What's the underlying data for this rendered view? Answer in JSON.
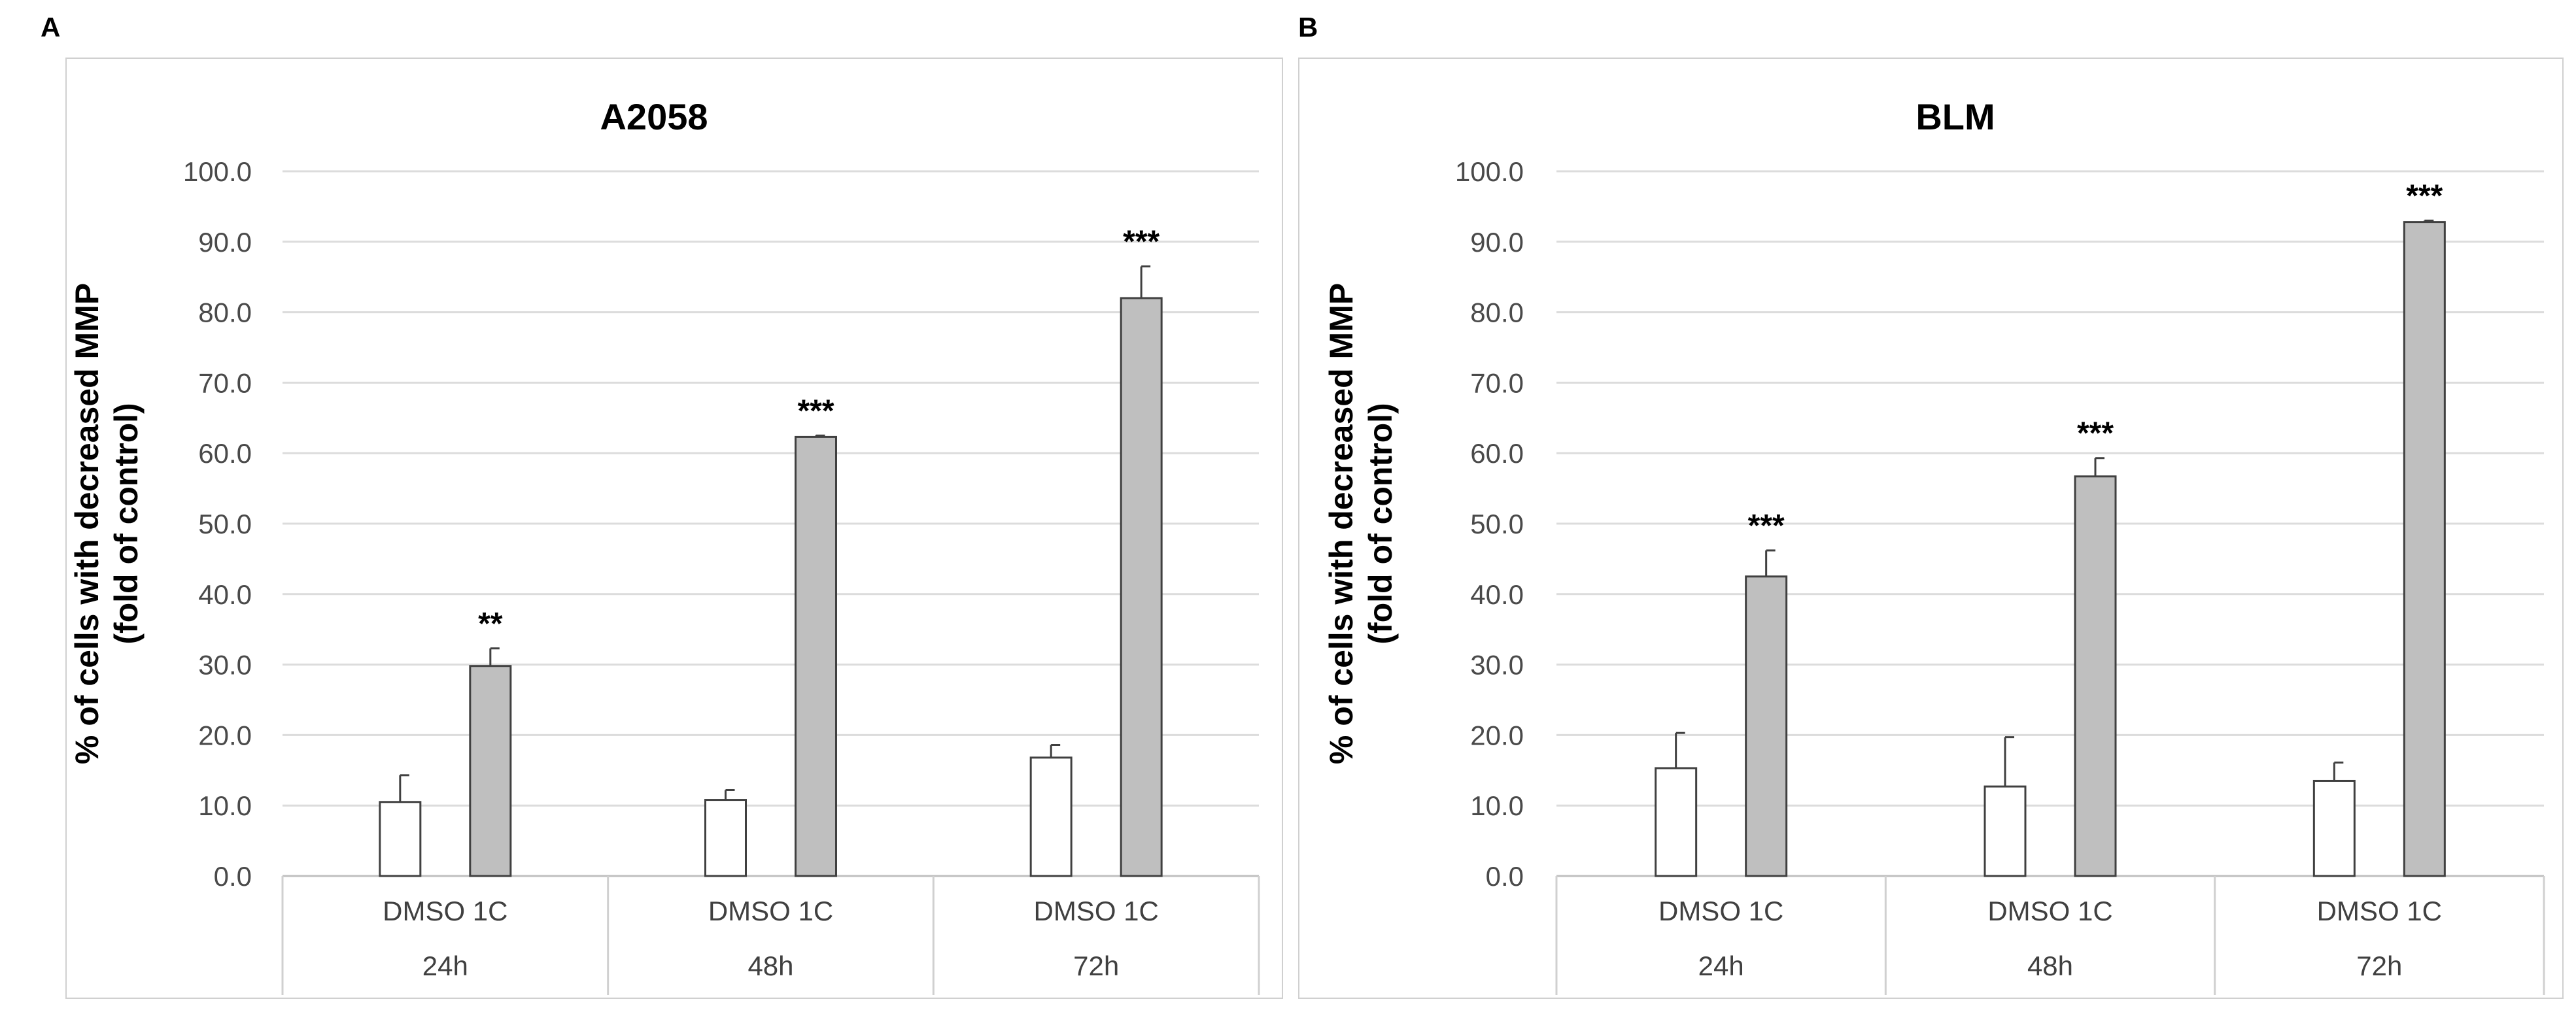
{
  "chart_data": [
    {
      "panel_label": "A",
      "type": "bar",
      "title": "A2058",
      "ylabel": [
        "% of cells with decreased MMP",
        "(fold of control)"
      ],
      "xlabel": "",
      "ylim": [
        0,
        100
      ],
      "yticks": [
        "0.0",
        "10.0",
        "20.0",
        "30.0",
        "40.0",
        "50.0",
        "60.0",
        "70.0",
        "80.0",
        "90.0",
        "100.0"
      ],
      "groups": [
        "24h",
        "48h",
        "72h"
      ],
      "group_sublabel": "DMSO 1C",
      "series": [
        {
          "name": "DMSO",
          "color": "#ffffff",
          "values": [
            10.5,
            10.8,
            16.8
          ],
          "errors": [
            3.8,
            1.4,
            1.8
          ]
        },
        {
          "name": "1C",
          "color": "#bfbfbf",
          "values": [
            29.8,
            62.3,
            82.0
          ],
          "errors": [
            2.5,
            0.2,
            4.5
          ]
        }
      ],
      "significance": [
        "**",
        "***",
        "***"
      ],
      "grid": true
    },
    {
      "panel_label": "B",
      "type": "bar",
      "title": "BLM",
      "ylabel": [
        "% of cells with decreased MMP",
        "(fold of control)"
      ],
      "xlabel": "",
      "ylim": [
        0,
        100
      ],
      "yticks": [
        "0.0",
        "10.0",
        "20.0",
        "30.0",
        "40.0",
        "50.0",
        "60.0",
        "70.0",
        "80.0",
        "90.0",
        "100.0"
      ],
      "groups": [
        "24h",
        "48h",
        "72h"
      ],
      "group_sublabel": "DMSO 1C",
      "series": [
        {
          "name": "DMSO",
          "color": "#ffffff",
          "values": [
            15.3,
            12.7,
            13.5
          ],
          "errors": [
            5.0,
            7.0,
            2.6
          ]
        },
        {
          "name": "1C",
          "color": "#bfbfbf",
          "values": [
            42.5,
            56.7,
            92.8
          ],
          "errors": [
            3.7,
            2.6,
            0.2
          ]
        }
      ],
      "significance": [
        "***",
        "***",
        "***"
      ],
      "grid": true
    }
  ]
}
